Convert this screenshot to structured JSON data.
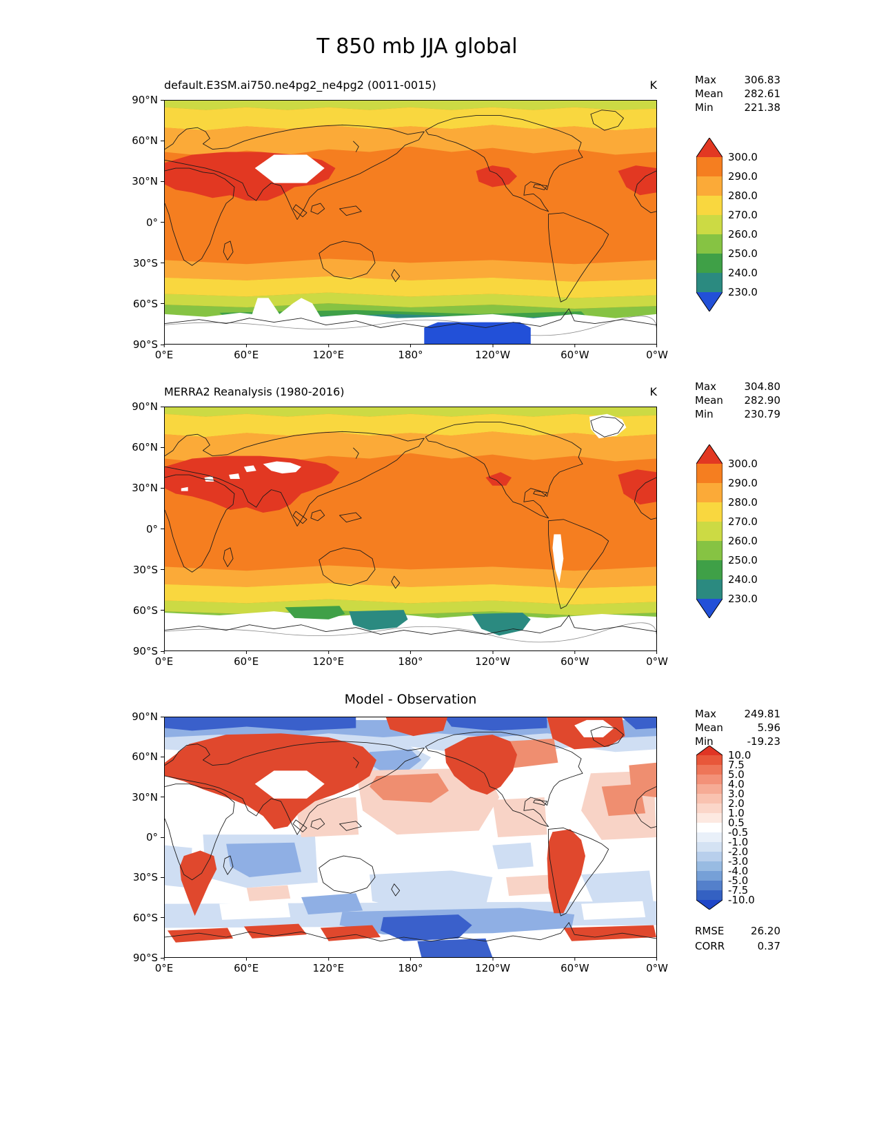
{
  "title": "T 850 mb JJA global",
  "stat_labels": {
    "max": "Max",
    "mean": "Mean",
    "min": "Min"
  },
  "axes": {
    "lat_ticks": [
      "90°N",
      "60°N",
      "30°N",
      "0°",
      "30°S",
      "60°S",
      "90°S"
    ],
    "lon_ticks": [
      "0°E",
      "60°E",
      "120°E",
      "180°",
      "120°W",
      "60°W",
      "0°W"
    ]
  },
  "panels": [
    {
      "subtitle": "default.E3SM.ai750.ne4pg2_ne4pg2 (0011-0015)",
      "units": "K",
      "stats": {
        "max": "306.83",
        "mean": "282.61",
        "min": "221.38"
      },
      "colorbar": {
        "labels": [
          "300.0",
          "290.0",
          "280.0",
          "270.0",
          "260.0",
          "250.0",
          "240.0",
          "230.0"
        ],
        "colors": [
          "#e23822",
          "#f57e20",
          "#fbaa38",
          "#f9d73f",
          "#ccda44",
          "#86c343",
          "#3fa047",
          "#2b8a80",
          "#2250d8"
        ]
      }
    },
    {
      "subtitle": "MERRA2 Reanalysis (1980-2016)",
      "units": "K",
      "stats": {
        "max": "304.80",
        "mean": "282.90",
        "min": "230.79"
      },
      "colorbar": {
        "labels": [
          "300.0",
          "290.0",
          "280.0",
          "270.0",
          "260.0",
          "250.0",
          "240.0",
          "230.0"
        ],
        "colors": [
          "#e23822",
          "#f57e20",
          "#fbaa38",
          "#f9d73f",
          "#ccda44",
          "#86c343",
          "#3fa047",
          "#2b8a80",
          "#2250d8"
        ]
      }
    },
    {
      "subtitle": "Model - Observation",
      "units": "",
      "stats": {
        "max": "249.81",
        "mean": "5.96",
        "min": "-19.23"
      },
      "rmse_label": "RMSE",
      "rmse": "26.20",
      "corr_label": "CORR",
      "corr": "0.37",
      "colorbar": {
        "labels": [
          "10.0",
          "7.5",
          "5.0",
          "4.0",
          "3.0",
          "2.0",
          "1.0",
          "0.5",
          "-0.5",
          "-1.0",
          "-2.0",
          "-3.0",
          "-4.0",
          "-5.0",
          "-7.5",
          "-10.0"
        ],
        "colors": [
          "#e03524",
          "#e8573a",
          "#ee7558",
          "#f39178",
          "#f6ab95",
          "#f9c2b0",
          "#fbd6c9",
          "#fde9e1",
          "#ffffff",
          "#e9f0f9",
          "#d4e2f3",
          "#b8cfec",
          "#98bbe2",
          "#76a0d7",
          "#5480cb",
          "#3461c2",
          "#1f46c8"
        ]
      }
    }
  ],
  "chart_data": {
    "type": "heatmap",
    "variable": "T",
    "level": "850 mb",
    "season": "JJA",
    "region": "global",
    "units": "K",
    "title": "T 850 mb JJA global",
    "x_axis": {
      "label": "longitude",
      "ticks": [
        "0°E",
        "60°E",
        "120°E",
        "180°",
        "120°W",
        "60°W",
        "0°W"
      ],
      "range_deg": [
        0,
        360
      ]
    },
    "y_axis": {
      "label": "latitude",
      "ticks": [
        "90°N",
        "60°N",
        "30°N",
        "0°",
        "30°S",
        "60°S",
        "90°S"
      ],
      "range_deg": [
        -90,
        90
      ]
    },
    "panels": [
      {
        "title": "default.E3SM.ai750.ne4pg2_ne4pg2 (0011-0015)",
        "stats": {
          "max": 306.83,
          "mean": 282.61,
          "min": 221.38
        },
        "contour_levels": [
          230,
          240,
          250,
          260,
          270,
          280,
          290,
          300
        ],
        "colormap": "rainbow (blue=cold to red=warm), extend both"
      },
      {
        "title": "MERRA2 Reanalysis (1980-2016)",
        "stats": {
          "max": 304.8,
          "mean": 282.9,
          "min": 230.79
        },
        "contour_levels": [
          230,
          240,
          250,
          260,
          270,
          280,
          290,
          300
        ],
        "colormap": "rainbow (blue=cold to red=warm), extend both"
      },
      {
        "title": "Model - Observation",
        "stats": {
          "max": 249.81,
          "mean": 5.96,
          "min": -19.23
        },
        "contour_levels": [
          -10,
          -7.5,
          -5,
          -4,
          -3,
          -2,
          -1,
          -0.5,
          0.5,
          1,
          2,
          3,
          4,
          5,
          7.5,
          10
        ],
        "rmse": 26.2,
        "corr": 0.37,
        "colormap": "blue-white-red diverging, extend both"
      }
    ]
  }
}
